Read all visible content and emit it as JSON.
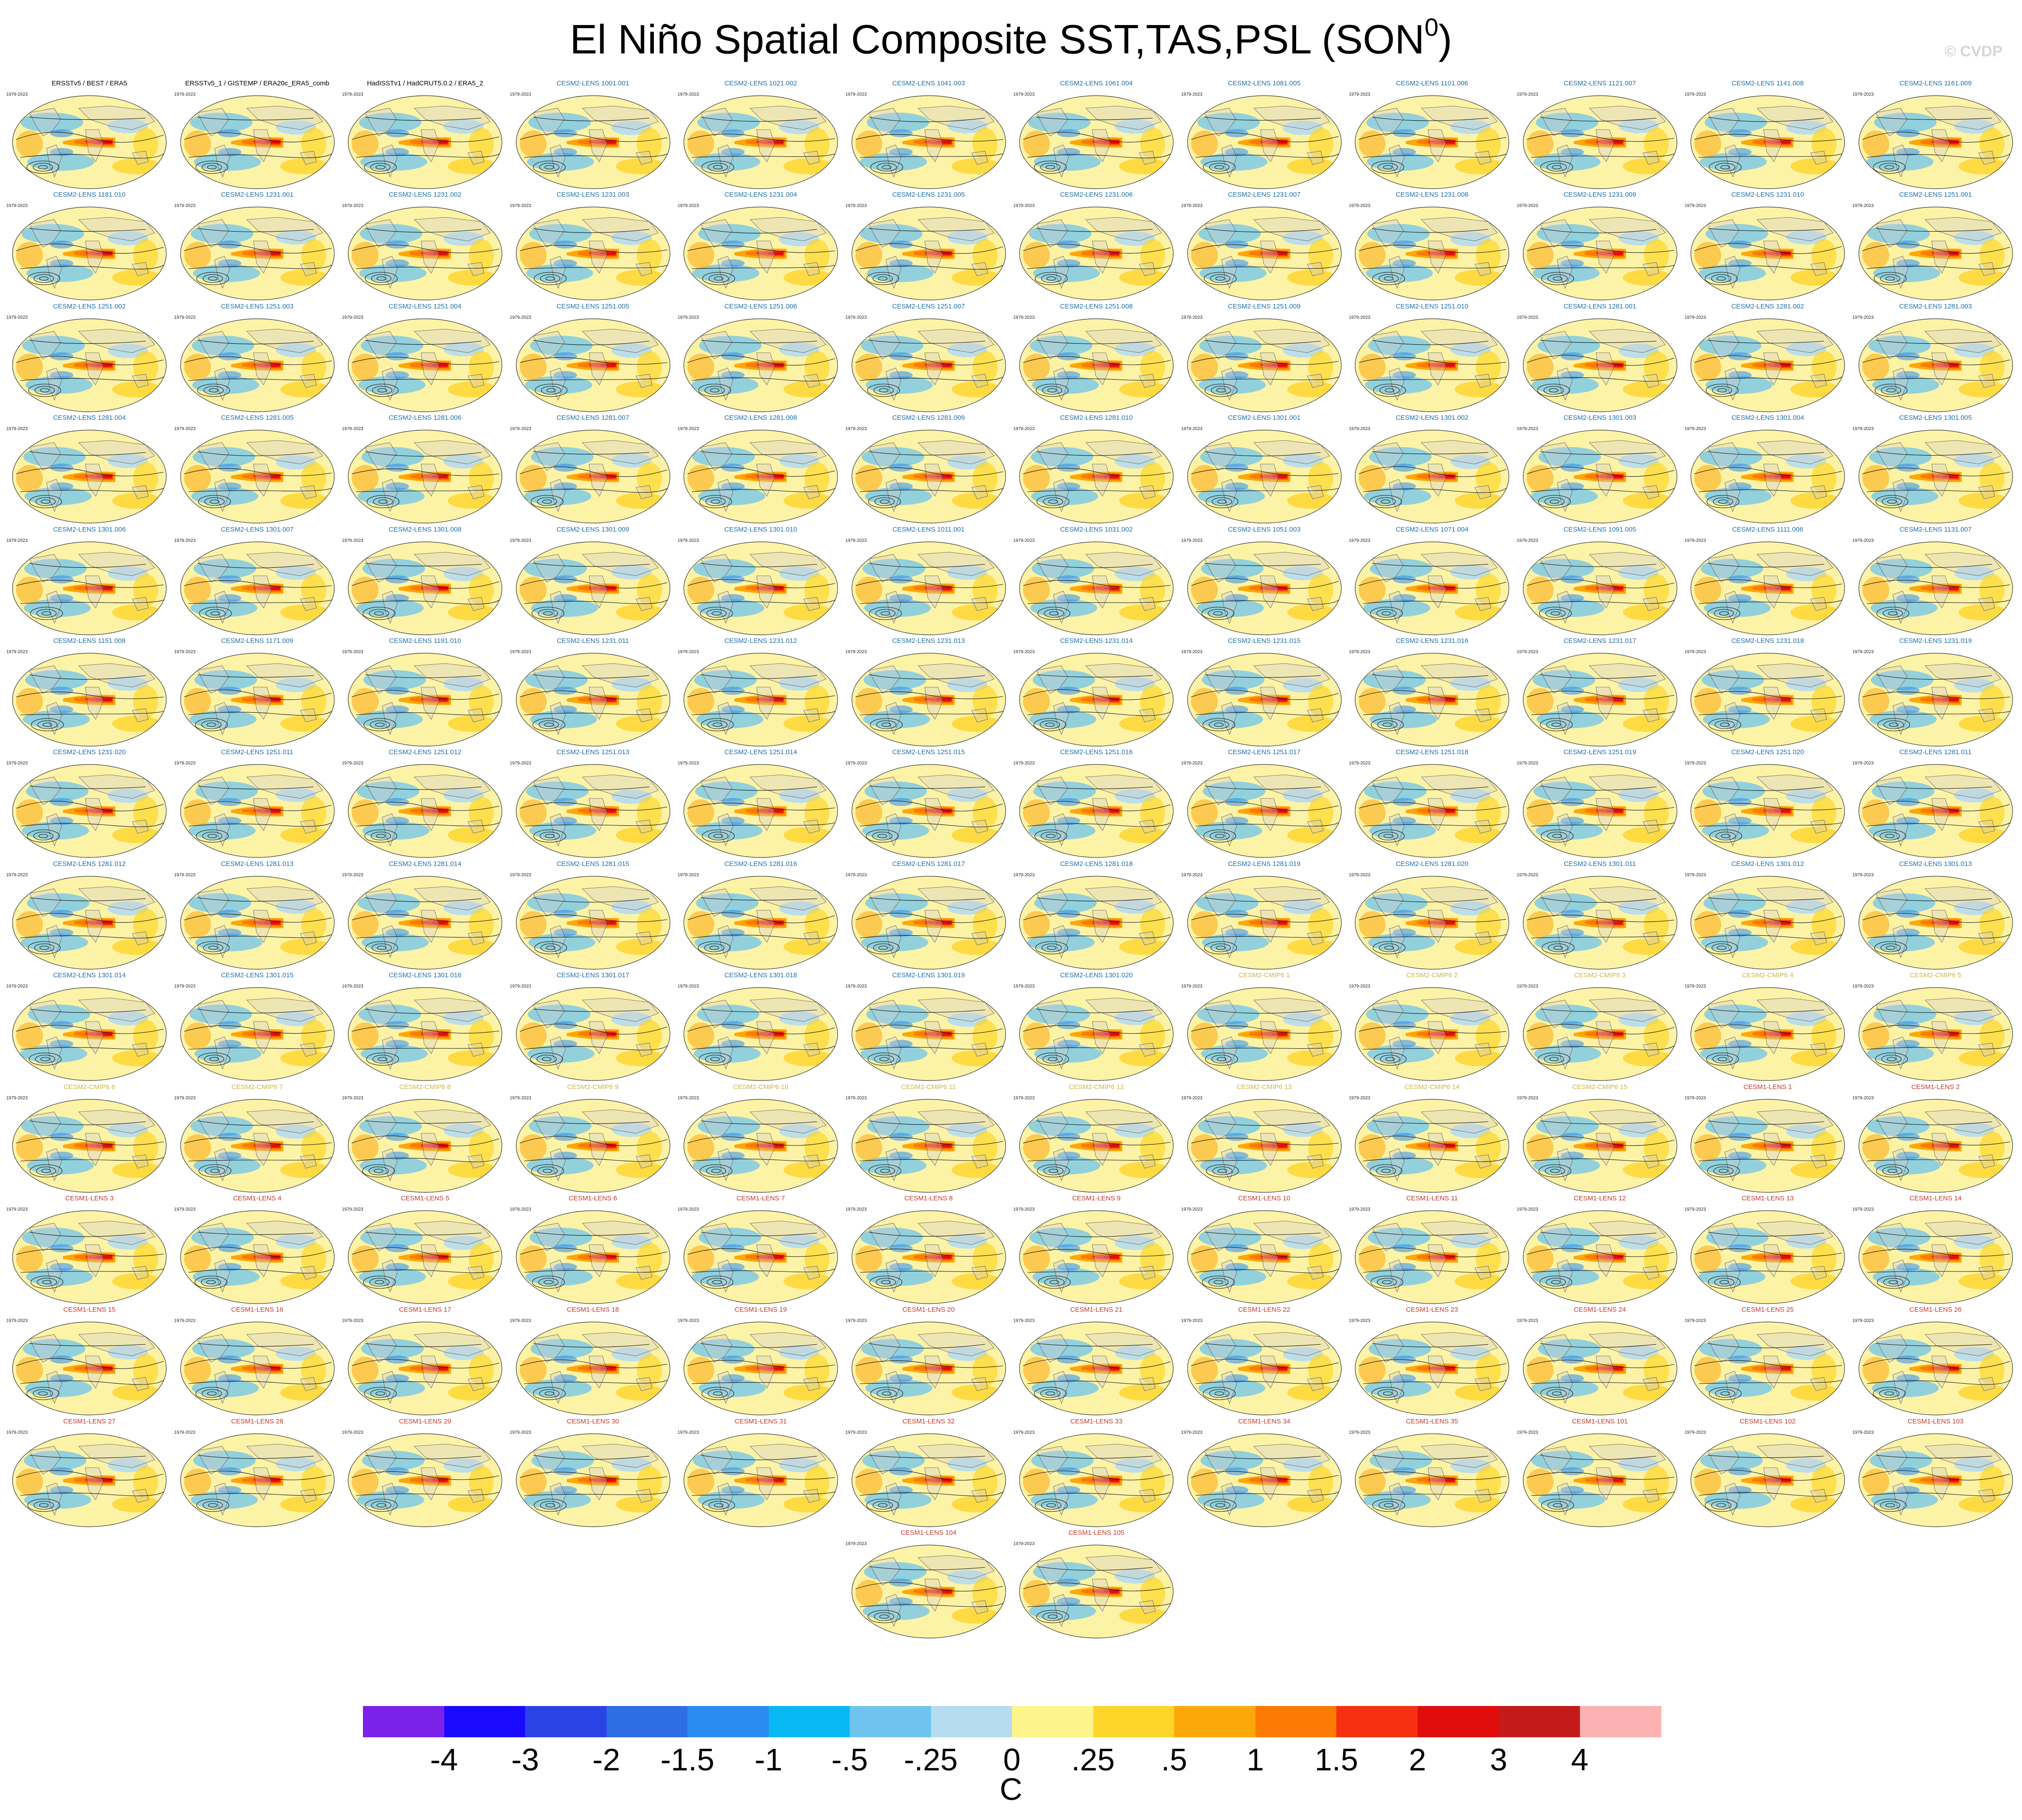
{
  "title": "El Niño Spatial Composite SST,TAS,PSL (SON",
  "title_sup": "0",
  "title_end": ")",
  "watermark": "© CVDP",
  "colors": {
    "obs_title": "#000000",
    "cesm2_title": "#1f6fa8",
    "cmip6_title": "#c9b54a",
    "cesm1_title": "#c0392b",
    "ocean_base": "#fdf3a6",
    "land": "#cfcfcf"
  },
  "chart_data": {
    "type": "heatmap",
    "title": "El Niño Spatial Composite SST,TAS,PSL (SON0)",
    "panel_period": "1979-2023",
    "panels": [
      {
        "name": "ERSSTv5 / BEST / ERA5",
        "group": "obs"
      },
      {
        "name": "ERSSTv5_1 / GISTEMP / ERA20c_ERA5_comb",
        "group": "obs"
      },
      {
        "name": "HadISSTv1 / HadCRUT5.0.2 / ERA5_2",
        "group": "obs"
      },
      {
        "name": "CESM2-LENS 1001.001",
        "group": "cesm2"
      },
      {
        "name": "CESM2-LENS 1021.002",
        "group": "cesm2"
      },
      {
        "name": "CESM2-LENS 1041.003",
        "group": "cesm2"
      },
      {
        "name": "CESM2-LENS 1061.004",
        "group": "cesm2"
      },
      {
        "name": "CESM2-LENS 1081.005",
        "group": "cesm2"
      },
      {
        "name": "CESM2-LENS 1101.006",
        "group": "cesm2"
      },
      {
        "name": "CESM2-LENS 1121.007",
        "group": "cesm2"
      },
      {
        "name": "CESM2-LENS 1141.008",
        "group": "cesm2"
      },
      {
        "name": "CESM2-LENS 1161.009",
        "group": "cesm2"
      },
      {
        "name": "CESM2-LENS 1181.010",
        "group": "cesm2"
      },
      {
        "name": "CESM2-LENS 1231.001",
        "group": "cesm2"
      },
      {
        "name": "CESM2-LENS 1231.002",
        "group": "cesm2"
      },
      {
        "name": "CESM2-LENS 1231.003",
        "group": "cesm2"
      },
      {
        "name": "CESM2-LENS 1231.004",
        "group": "cesm2"
      },
      {
        "name": "CESM2-LENS 1231.005",
        "group": "cesm2"
      },
      {
        "name": "CESM2-LENS 1231.006",
        "group": "cesm2"
      },
      {
        "name": "CESM2-LENS 1231.007",
        "group": "cesm2"
      },
      {
        "name": "CESM2-LENS 1231.008",
        "group": "cesm2"
      },
      {
        "name": "CESM2-LENS 1231.009",
        "group": "cesm2"
      },
      {
        "name": "CESM2-LENS 1231.010",
        "group": "cesm2"
      },
      {
        "name": "CESM2-LENS 1251.001",
        "group": "cesm2"
      },
      {
        "name": "CESM2-LENS 1251.002",
        "group": "cesm2"
      },
      {
        "name": "CESM2-LENS 1251.003",
        "group": "cesm2"
      },
      {
        "name": "CESM2-LENS 1251.004",
        "group": "cesm2"
      },
      {
        "name": "CESM2-LENS 1251.005",
        "group": "cesm2"
      },
      {
        "name": "CESM2-LENS 1251.006",
        "group": "cesm2"
      },
      {
        "name": "CESM2-LENS 1251.007",
        "group": "cesm2"
      },
      {
        "name": "CESM2-LENS 1251.008",
        "group": "cesm2"
      },
      {
        "name": "CESM2-LENS 1251.009",
        "group": "cesm2"
      },
      {
        "name": "CESM2-LENS 1251.010",
        "group": "cesm2"
      },
      {
        "name": "CESM2-LENS 1281.001",
        "group": "cesm2"
      },
      {
        "name": "CESM2-LENS 1281.002",
        "group": "cesm2"
      },
      {
        "name": "CESM2-LENS 1281.003",
        "group": "cesm2"
      },
      {
        "name": "CESM2-LENS 1281.004",
        "group": "cesm2"
      },
      {
        "name": "CESM2-LENS 1281.005",
        "group": "cesm2"
      },
      {
        "name": "CESM2-LENS 1281.006",
        "group": "cesm2"
      },
      {
        "name": "CESM2-LENS 1281.007",
        "group": "cesm2"
      },
      {
        "name": "CESM2-LENS 1281.008",
        "group": "cesm2"
      },
      {
        "name": "CESM2-LENS 1281.009",
        "group": "cesm2"
      },
      {
        "name": "CESM2-LENS 1281.010",
        "group": "cesm2"
      },
      {
        "name": "CESM2-LENS 1301.001",
        "group": "cesm2"
      },
      {
        "name": "CESM2-LENS 1301.002",
        "group": "cesm2"
      },
      {
        "name": "CESM2-LENS 1301.003",
        "group": "cesm2"
      },
      {
        "name": "CESM2-LENS 1301.004",
        "group": "cesm2"
      },
      {
        "name": "CESM2-LENS 1301.005",
        "group": "cesm2"
      },
      {
        "name": "CESM2-LENS 1301.006",
        "group": "cesm2"
      },
      {
        "name": "CESM2-LENS 1301.007",
        "group": "cesm2"
      },
      {
        "name": "CESM2-LENS 1301.008",
        "group": "cesm2"
      },
      {
        "name": "CESM2-LENS 1301.009",
        "group": "cesm2"
      },
      {
        "name": "CESM2-LENS 1301.010",
        "group": "cesm2"
      },
      {
        "name": "CESM2-LENS 1011.001",
        "group": "cesm2"
      },
      {
        "name": "CESM2-LENS 1031.002",
        "group": "cesm2"
      },
      {
        "name": "CESM2-LENS 1051.003",
        "group": "cesm2"
      },
      {
        "name": "CESM2-LENS 1071.004",
        "group": "cesm2"
      },
      {
        "name": "CESM2-LENS 1091.005",
        "group": "cesm2"
      },
      {
        "name": "CESM2-LENS 1111.006",
        "group": "cesm2"
      },
      {
        "name": "CESM2-LENS 1131.007",
        "group": "cesm2"
      },
      {
        "name": "CESM2-LENS 1151.008",
        "group": "cesm2"
      },
      {
        "name": "CESM2-LENS 1171.009",
        "group": "cesm2"
      },
      {
        "name": "CESM2-LENS 1191.010",
        "group": "cesm2"
      },
      {
        "name": "CESM2-LENS 1231.011",
        "group": "cesm2"
      },
      {
        "name": "CESM2-LENS 1231.012",
        "group": "cesm2"
      },
      {
        "name": "CESM2-LENS 1231.013",
        "group": "cesm2"
      },
      {
        "name": "CESM2-LENS 1231.014",
        "group": "cesm2"
      },
      {
        "name": "CESM2-LENS 1231.015",
        "group": "cesm2"
      },
      {
        "name": "CESM2-LENS 1231.016",
        "group": "cesm2"
      },
      {
        "name": "CESM2-LENS 1231.017",
        "group": "cesm2"
      },
      {
        "name": "CESM2-LENS 1231.018",
        "group": "cesm2"
      },
      {
        "name": "CESM2-LENS 1231.019",
        "group": "cesm2"
      },
      {
        "name": "CESM2-LENS 1231.020",
        "group": "cesm2"
      },
      {
        "name": "CESM2-LENS 1251.011",
        "group": "cesm2"
      },
      {
        "name": "CESM2-LENS 1251.012",
        "group": "cesm2"
      },
      {
        "name": "CESM2-LENS 1251.013",
        "group": "cesm2"
      },
      {
        "name": "CESM2-LENS 1251.014",
        "group": "cesm2"
      },
      {
        "name": "CESM2-LENS 1251.015",
        "group": "cesm2"
      },
      {
        "name": "CESM2-LENS 1251.016",
        "group": "cesm2"
      },
      {
        "name": "CESM2-LENS 1251.017",
        "group": "cesm2"
      },
      {
        "name": "CESM2-LENS 1251.018",
        "group": "cesm2"
      },
      {
        "name": "CESM2-LENS 1251.019",
        "group": "cesm2"
      },
      {
        "name": "CESM2-LENS 1251.020",
        "group": "cesm2"
      },
      {
        "name": "CESM2-LENS 1281.011",
        "group": "cesm2"
      },
      {
        "name": "CESM2-LENS 1281.012",
        "group": "cesm2"
      },
      {
        "name": "CESM2-LENS 1281.013",
        "group": "cesm2"
      },
      {
        "name": "CESM2-LENS 1281.014",
        "group": "cesm2"
      },
      {
        "name": "CESM2-LENS 1281.015",
        "group": "cesm2"
      },
      {
        "name": "CESM2-LENS 1281.016",
        "group": "cesm2"
      },
      {
        "name": "CESM2-LENS 1281.017",
        "group": "cesm2"
      },
      {
        "name": "CESM2-LENS 1281.018",
        "group": "cesm2"
      },
      {
        "name": "CESM2-LENS 1281.019",
        "group": "cesm2"
      },
      {
        "name": "CESM2-LENS 1281.020",
        "group": "cesm2"
      },
      {
        "name": "CESM2-LENS 1301.011",
        "group": "cesm2"
      },
      {
        "name": "CESM2-LENS 1301.012",
        "group": "cesm2"
      },
      {
        "name": "CESM2-LENS 1301.013",
        "group": "cesm2"
      },
      {
        "name": "CESM2-LENS 1301.014",
        "group": "cesm2"
      },
      {
        "name": "CESM2-LENS 1301.015",
        "group": "cesm2"
      },
      {
        "name": "CESM2-LENS 1301.016",
        "group": "cesm2"
      },
      {
        "name": "CESM2-LENS 1301.017",
        "group": "cesm2"
      },
      {
        "name": "CESM2-LENS 1301.018",
        "group": "cesm2"
      },
      {
        "name": "CESM2-LENS 1301.019",
        "group": "cesm2"
      },
      {
        "name": "CESM2-LENS 1301.020",
        "group": "cesm2"
      },
      {
        "name": "CESM2-CMIP6 1",
        "group": "cmip6"
      },
      {
        "name": "CESM2-CMIP6 2",
        "group": "cmip6"
      },
      {
        "name": "CESM2-CMIP6 3",
        "group": "cmip6"
      },
      {
        "name": "CESM2-CMIP6 4",
        "group": "cmip6"
      },
      {
        "name": "CESM2-CMIP6 5",
        "group": "cmip6"
      },
      {
        "name": "CESM2-CMIP6 6",
        "group": "cmip6"
      },
      {
        "name": "CESM2-CMIP6 7",
        "group": "cmip6"
      },
      {
        "name": "CESM2-CMIP6 8",
        "group": "cmip6"
      },
      {
        "name": "CESM2-CMIP6 9",
        "group": "cmip6"
      },
      {
        "name": "CESM2-CMIP6 10",
        "group": "cmip6"
      },
      {
        "name": "CESM2-CMIP6 11",
        "group": "cmip6"
      },
      {
        "name": "CESM2-CMIP6 12",
        "group": "cmip6"
      },
      {
        "name": "CESM2-CMIP6 13",
        "group": "cmip6"
      },
      {
        "name": "CESM2-CMIP6 14",
        "group": "cmip6"
      },
      {
        "name": "CESM2-CMIP6 15",
        "group": "cmip6"
      },
      {
        "name": "CESM1-LENS 1",
        "group": "cesm1"
      },
      {
        "name": "CESM1-LENS 2",
        "group": "cesm1"
      },
      {
        "name": "CESM1-LENS 3",
        "group": "cesm1"
      },
      {
        "name": "CESM1-LENS 4",
        "group": "cesm1"
      },
      {
        "name": "CESM1-LENS 5",
        "group": "cesm1"
      },
      {
        "name": "CESM1-LENS 6",
        "group": "cesm1"
      },
      {
        "name": "CESM1-LENS 7",
        "group": "cesm1"
      },
      {
        "name": "CESM1-LENS 8",
        "group": "cesm1"
      },
      {
        "name": "CESM1-LENS 9",
        "group": "cesm1"
      },
      {
        "name": "CESM1-LENS 10",
        "group": "cesm1"
      },
      {
        "name": "CESM1-LENS 11",
        "group": "cesm1"
      },
      {
        "name": "CESM1-LENS 12",
        "group": "cesm1"
      },
      {
        "name": "CESM1-LENS 13",
        "group": "cesm1"
      },
      {
        "name": "CESM1-LENS 14",
        "group": "cesm1"
      },
      {
        "name": "CESM1-LENS 15",
        "group": "cesm1"
      },
      {
        "name": "CESM1-LENS 16",
        "group": "cesm1"
      },
      {
        "name": "CESM1-LENS 17",
        "group": "cesm1"
      },
      {
        "name": "CESM1-LENS 18",
        "group": "cesm1"
      },
      {
        "name": "CESM1-LENS 19",
        "group": "cesm1"
      },
      {
        "name": "CESM1-LENS 20",
        "group": "cesm1"
      },
      {
        "name": "CESM1-LENS 21",
        "group": "cesm1"
      },
      {
        "name": "CESM1-LENS 22",
        "group": "cesm1"
      },
      {
        "name": "CESM1-LENS 23",
        "group": "cesm1"
      },
      {
        "name": "CESM1-LENS 24",
        "group": "cesm1"
      },
      {
        "name": "CESM1-LENS 25",
        "group": "cesm1"
      },
      {
        "name": "CESM1-LENS 26",
        "group": "cesm1"
      },
      {
        "name": "CESM1-LENS 27",
        "group": "cesm1"
      },
      {
        "name": "CESM1-LENS 28",
        "group": "cesm1"
      },
      {
        "name": "CESM1-LENS 29",
        "group": "cesm1"
      },
      {
        "name": "CESM1-LENS 30",
        "group": "cesm1"
      },
      {
        "name": "CESM1-LENS 31",
        "group": "cesm1"
      },
      {
        "name": "CESM1-LENS 32",
        "group": "cesm1"
      },
      {
        "name": "CESM1-LENS 33",
        "group": "cesm1"
      },
      {
        "name": "CESM1-LENS 34",
        "group": "cesm1"
      },
      {
        "name": "CESM1-LENS 35",
        "group": "cesm1"
      },
      {
        "name": "CESM1-LENS 101",
        "group": "cesm1"
      },
      {
        "name": "CESM1-LENS 102",
        "group": "cesm1"
      },
      {
        "name": "CESM1-LENS 103",
        "group": "cesm1"
      },
      {
        "name": "CESM1-LENS 104",
        "group": "cesm1"
      },
      {
        "name": "CESM1-LENS 105",
        "group": "cesm1"
      }
    ],
    "colorbar": {
      "unit": "C",
      "labels": [
        "-4",
        "-3",
        "-2",
        "-1.5",
        "-1",
        "-.5",
        "-.25",
        "0",
        ".25",
        ".5",
        "1",
        "1.5",
        "2",
        "3",
        "4"
      ],
      "colors": [
        "#7b22e8",
        "#1a0aff",
        "#2a44e6",
        "#2d6ee4",
        "#2a8cf0",
        "#08b8f5",
        "#6ec4ee",
        "#b5dcef",
        "#fdf48c",
        "#fed52a",
        "#fca70a",
        "#fb7a04",
        "#f63011",
        "#e10c0c",
        "#c41a1a",
        "#fcb2b2"
      ]
    }
  }
}
